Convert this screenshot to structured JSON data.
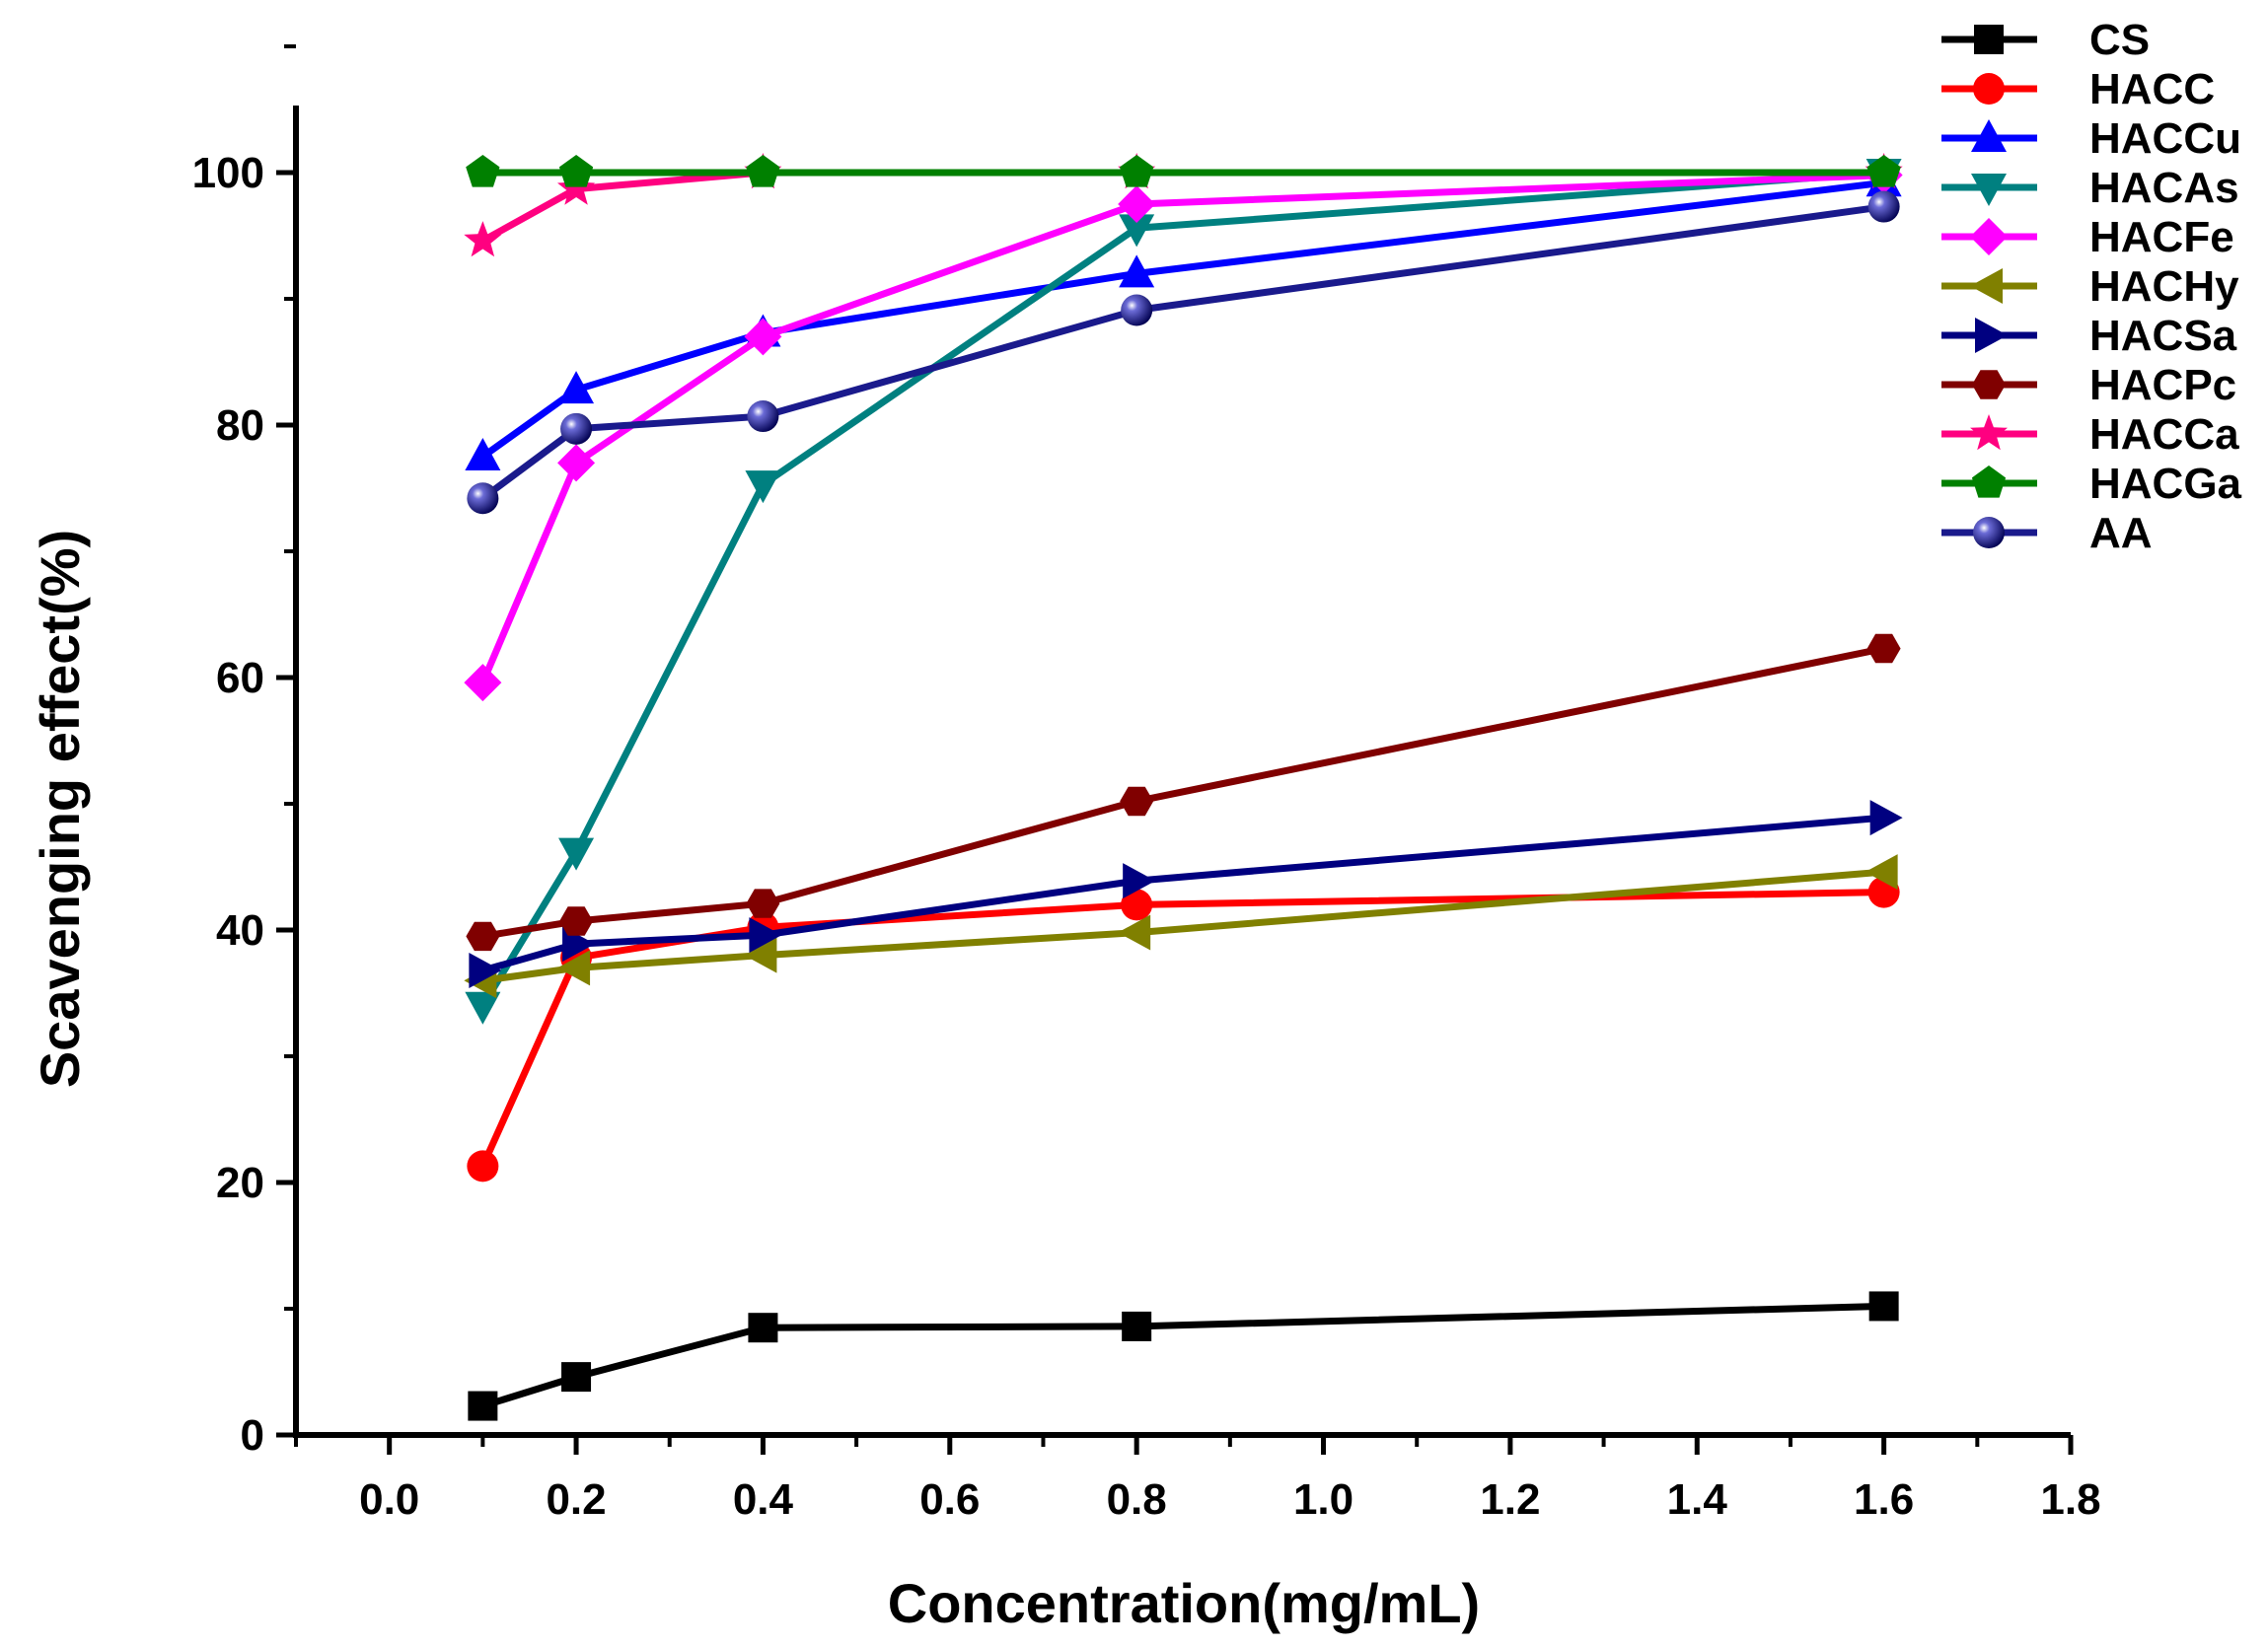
{
  "chart_data": {
    "type": "line",
    "title": "",
    "xlabel": "Concentration(mg/mL)",
    "ylabel": "Scavenging effect(%)",
    "xlim": [
      -0.1,
      1.8
    ],
    "ylim": [
      0,
      100
    ],
    "x": [
      0.1,
      0.2,
      0.4,
      0.8,
      1.6
    ],
    "xticks": [
      0.0,
      0.2,
      0.4,
      0.6,
      0.8,
      1.0,
      1.2,
      1.4,
      1.6,
      1.8
    ],
    "xtick_labels": [
      "0.0",
      "0.2",
      "0.4",
      "0.6",
      "0.8",
      "1.0",
      "1.2",
      "1.4",
      "1.6",
      "1.8"
    ],
    "yticks": [
      0,
      20,
      40,
      60,
      80,
      100
    ],
    "ytick_labels": [
      "0",
      "20",
      "40",
      "60",
      "80",
      "100"
    ],
    "legend_position": "right",
    "series": [
      {
        "name": "CS",
        "marker": "square",
        "color": "#000000",
        "values": [
          2.3,
          4.6,
          8.5,
          8.6,
          10.2
        ]
      },
      {
        "name": "HACC",
        "marker": "circle",
        "color": "#ff0000",
        "values": [
          21.3,
          37.8,
          40.2,
          42.0,
          43.0
        ]
      },
      {
        "name": "HACCu",
        "marker": "triangle-up",
        "color": "#0000ff",
        "values": [
          77.5,
          82.8,
          87.3,
          92.0,
          99.2
        ]
      },
      {
        "name": "HACAs",
        "marker": "triangle-down",
        "color": "#008080",
        "values": [
          34.0,
          46.2,
          75.3,
          95.6,
          100.0
        ]
      },
      {
        "name": "HACFe",
        "marker": "diamond",
        "color": "#ff00ff",
        "values": [
          59.6,
          77.0,
          87.0,
          97.5,
          99.8
        ]
      },
      {
        "name": "HACHy",
        "marker": "triangle-left",
        "color": "#808000",
        "values": [
          36.0,
          37.0,
          38.0,
          39.8,
          44.6
        ]
      },
      {
        "name": "HACSa",
        "marker": "triangle-right",
        "color": "#000080",
        "values": [
          36.8,
          38.9,
          39.6,
          43.9,
          48.9
        ]
      },
      {
        "name": "HACPc",
        "marker": "hexagon",
        "color": "#800000",
        "values": [
          39.5,
          40.7,
          42.1,
          50.2,
          62.3
        ]
      },
      {
        "name": "HACCa",
        "marker": "star",
        "color": "#ff0080",
        "values": [
          94.6,
          98.7,
          100.0,
          100.0,
          100.0
        ]
      },
      {
        "name": "HACGa",
        "marker": "pentagon",
        "color": "#008000",
        "values": [
          100.0,
          100.0,
          100.0,
          100.0,
          100.0
        ]
      },
      {
        "name": "AA",
        "marker": "sphere",
        "color": "#1a1a8c",
        "values": [
          74.2,
          79.7,
          80.7,
          89.1,
          97.3
        ]
      }
    ]
  }
}
